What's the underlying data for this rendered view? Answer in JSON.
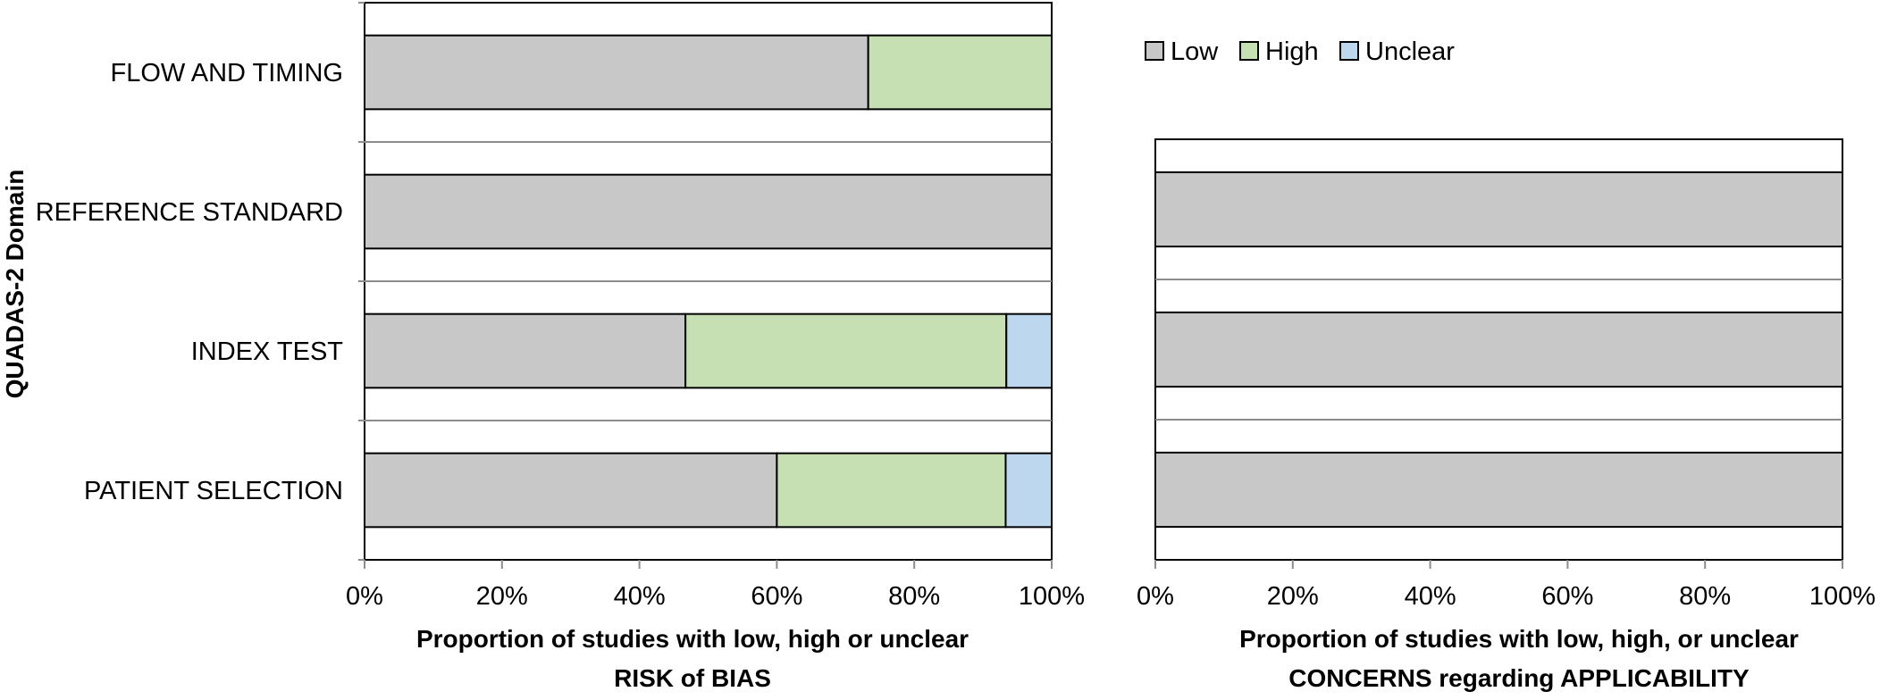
{
  "chart_data": [
    {
      "type": "bar",
      "orientation": "horizontal",
      "stacked": true,
      "title": "",
      "ylabel": "QUADAS-2 Domain",
      "xlabel_lines": [
        "Proportion of studies with low, high or unclear",
        "RISK of BIAS"
      ],
      "categories": [
        "PATIENT SELECTION",
        "INDEX TEST",
        "REFERENCE STANDARD",
        "FLOW AND TIMING"
      ],
      "series": [
        {
          "name": "Low",
          "values": [
            60,
            46.7,
            100,
            73.3
          ]
        },
        {
          "name": "High",
          "values": [
            33.3,
            46.7,
            0,
            26.7
          ]
        },
        {
          "name": "Unclear",
          "values": [
            6.7,
            6.6,
            0,
            0
          ]
        }
      ],
      "xlim": [
        0,
        100
      ],
      "xticks": [
        "0%",
        "20%",
        "40%",
        "60%",
        "80%",
        "100%"
      ],
      "grid": "horizontal category separators"
    },
    {
      "type": "bar",
      "orientation": "horizontal",
      "stacked": true,
      "title": "",
      "xlabel_lines": [
        "Proportion of studies with low, high, or unclear",
        "CONCERNS regarding APPLICABILITY"
      ],
      "categories": [
        "PATIENT SELECTION",
        "INDEX TEST",
        "REFERENCE STANDARD"
      ],
      "series": [
        {
          "name": "Low",
          "values": [
            100,
            100,
            100
          ]
        },
        {
          "name": "High",
          "values": [
            0,
            0,
            0
          ]
        },
        {
          "name": "Unclear",
          "values": [
            0,
            0,
            0
          ]
        }
      ],
      "xlim": [
        0,
        100
      ],
      "xticks": [
        "0%",
        "20%",
        "40%",
        "60%",
        "80%",
        "100%"
      ],
      "grid": "horizontal category separators"
    }
  ],
  "legend": {
    "position": "top-right",
    "items": [
      {
        "label": "Low",
        "color": "#c8c8c8"
      },
      {
        "label": "High",
        "color": "#c6e0b4"
      },
      {
        "label": "Unclear",
        "color": "#bdd7ee"
      }
    ]
  }
}
